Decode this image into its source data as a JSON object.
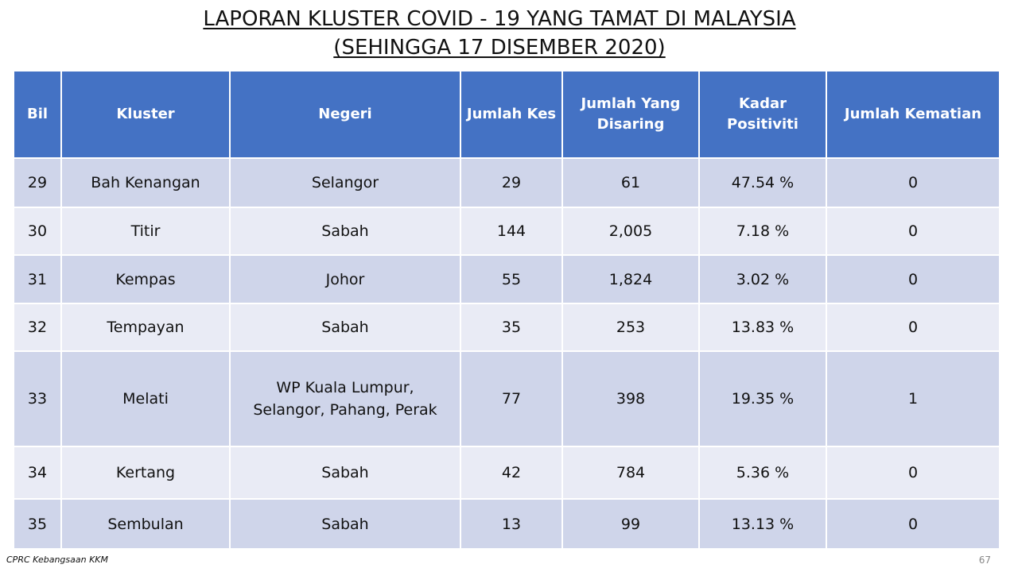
{
  "title": {
    "line1": "LAPORAN KLUSTER COVID - 19 YANG TAMAT DI MALAYSIA",
    "line2": "(SEHINGGA 17 DISEMBER 2020)"
  },
  "table": {
    "headers": {
      "bil": "Bil",
      "kluster": "Kluster",
      "negeri": "Negeri",
      "jumlah_kes": "Jumlah Kes",
      "jumlah_disaring_1": "Jumlah Yang",
      "jumlah_disaring_2": "Disaring",
      "kadar_positiviti": "Kadar Positiviti",
      "jumlah_kematian": "Jumlah Kematian"
    },
    "rows": [
      {
        "bil": "29",
        "kluster": "Bah Kenangan",
        "negeri": "Selangor",
        "negeri_2": "",
        "jumlah_kes": "29",
        "jumlah_disaring": "61",
        "kadar_positiviti": "47.54 %",
        "jumlah_kematian": "0"
      },
      {
        "bil": "30",
        "kluster": "Titir",
        "negeri": "Sabah",
        "negeri_2": "",
        "jumlah_kes": "144",
        "jumlah_disaring": "2,005",
        "kadar_positiviti": "7.18 %",
        "jumlah_kematian": "0"
      },
      {
        "bil": "31",
        "kluster": "Kempas",
        "negeri": "Johor",
        "negeri_2": "",
        "jumlah_kes": "55",
        "jumlah_disaring": "1,824",
        "kadar_positiviti": "3.02 %",
        "jumlah_kematian": "0"
      },
      {
        "bil": "32",
        "kluster": "Tempayan",
        "negeri": "Sabah",
        "negeri_2": "",
        "jumlah_kes": "35",
        "jumlah_disaring": "253",
        "kadar_positiviti": "13.83 %",
        "jumlah_kematian": "0"
      },
      {
        "bil": "33",
        "kluster": "Melati",
        "negeri": "WP Kuala Lumpur,",
        "negeri_2": "Selangor, Pahang, Perak",
        "jumlah_kes": "77",
        "jumlah_disaring": "398",
        "kadar_positiviti": "19.35 %",
        "jumlah_kematian": "1"
      },
      {
        "bil": "34",
        "kluster": "Kertang",
        "negeri": "Sabah",
        "negeri_2": "",
        "jumlah_kes": "42",
        "jumlah_disaring": "784",
        "kadar_positiviti": "5.36 %",
        "jumlah_kematian": "0"
      },
      {
        "bil": "35",
        "kluster": "Sembulan",
        "negeri": "Sabah",
        "negeri_2": "",
        "jumlah_kes": "13",
        "jumlah_disaring": "99",
        "kadar_positiviti": "13.13 %",
        "jumlah_kematian": "0"
      }
    ]
  },
  "footer": {
    "source": "CPRC Kebangsaan KKM",
    "page_number": "67"
  },
  "colors": {
    "header_bg": "#4472c4",
    "row_dark": "#cfd5ea",
    "row_light": "#e9ebf5"
  }
}
